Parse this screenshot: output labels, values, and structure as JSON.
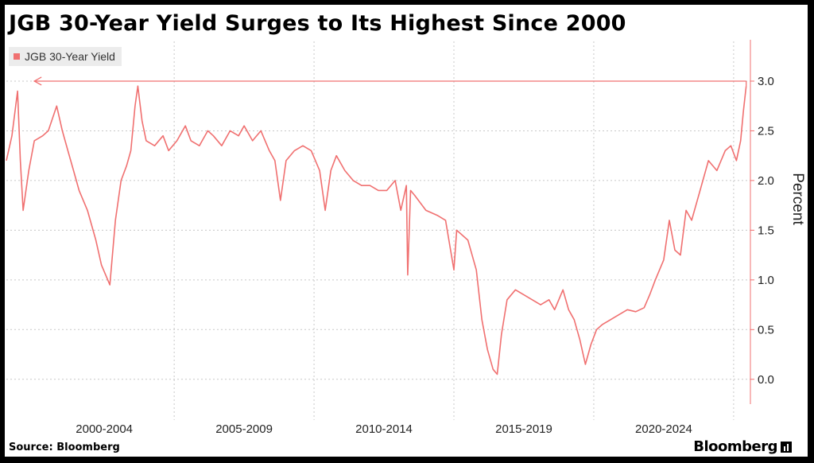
{
  "title": "JGB 30-Year Yield Surges to Its Highest Since 2000",
  "source": "Source: Bloomberg",
  "logo": "Bloomberg",
  "colors": {
    "series": "#f07070",
    "axis": "#f07070",
    "grid": "#c8c8c8"
  },
  "chart_data": {
    "type": "line",
    "title": "JGB 30-Year Yield Surges to Its Highest Since 2000",
    "legend": [
      "JGB 30-Year Yield"
    ],
    "legend_position": "top-left",
    "ylabel": "Percent",
    "y_axis_side": "right",
    "ylim": [
      -0.25,
      3.4
    ],
    "yticks": [
      "0.0",
      "0.5",
      "1.0",
      "1.5",
      "2.0",
      "2.5",
      "3.0"
    ],
    "x_period_labels": [
      "2000-2004",
      "2005-2009",
      "2010-2014",
      "2015-2019",
      "2020-2024"
    ],
    "xlim": [
      1999.0,
      2025.6
    ],
    "grid": true,
    "annotation": "horizontal arrow at 3.0 from latest value back to 2000",
    "series": [
      {
        "name": "JGB 30-Year Yield",
        "x": [
          1999.0,
          1999.2,
          1999.4,
          1999.5,
          1999.6,
          1999.8,
          2000.0,
          2000.3,
          2000.5,
          2000.8,
          2001.0,
          2001.2,
          2001.4,
          2001.6,
          2001.9,
          2002.2,
          2002.4,
          2002.7,
          2002.9,
          2003.1,
          2003.3,
          2003.45,
          2003.6,
          2003.7,
          2003.85,
          2004.0,
          2004.3,
          2004.6,
          2004.8,
          2005.1,
          2005.4,
          2005.6,
          2005.9,
          2006.2,
          2006.4,
          2006.7,
          2007.0,
          2007.3,
          2007.5,
          2007.8,
          2008.1,
          2008.4,
          2008.6,
          2008.8,
          2009.0,
          2009.3,
          2009.6,
          2009.9,
          2010.2,
          2010.4,
          2010.6,
          2010.8,
          2011.1,
          2011.4,
          2011.7,
          2012.0,
          2012.3,
          2012.6,
          2012.9,
          2013.1,
          2013.3,
          2013.35,
          2013.45,
          2013.6,
          2014.0,
          2014.4,
          2014.7,
          2015.0,
          2015.1,
          2015.3,
          2015.5,
          2015.8,
          2016.0,
          2016.2,
          2016.4,
          2016.55,
          2016.7,
          2016.9,
          2017.2,
          2017.5,
          2017.8,
          2018.1,
          2018.4,
          2018.6,
          2018.9,
          2019.1,
          2019.3,
          2019.5,
          2019.7,
          2019.9,
          2020.1,
          2020.3,
          2020.6,
          2020.9,
          2021.2,
          2021.5,
          2021.8,
          2022.0,
          2022.2,
          2022.5,
          2022.7,
          2022.9,
          2023.1,
          2023.3,
          2023.5,
          2023.8,
          2024.1,
          2024.4,
          2024.7,
          2024.9,
          2025.1,
          2025.25,
          2025.35,
          2025.45
        ],
        "values": [
          2.2,
          2.45,
          2.9,
          2.2,
          1.7,
          2.1,
          2.4,
          2.45,
          2.5,
          2.75,
          2.5,
          2.3,
          2.1,
          1.9,
          1.7,
          1.4,
          1.15,
          0.95,
          1.6,
          2.0,
          2.15,
          2.3,
          2.75,
          2.95,
          2.6,
          2.4,
          2.35,
          2.45,
          2.3,
          2.4,
          2.55,
          2.4,
          2.35,
          2.5,
          2.45,
          2.35,
          2.5,
          2.45,
          2.55,
          2.4,
          2.5,
          2.3,
          2.2,
          1.8,
          2.2,
          2.3,
          2.35,
          2.3,
          2.1,
          1.7,
          2.1,
          2.25,
          2.1,
          2.0,
          1.95,
          1.95,
          1.9,
          1.9,
          2.0,
          1.7,
          1.95,
          1.05,
          1.9,
          1.85,
          1.7,
          1.65,
          1.6,
          1.1,
          1.5,
          1.45,
          1.4,
          1.1,
          0.6,
          0.3,
          0.1,
          0.05,
          0.45,
          0.8,
          0.9,
          0.85,
          0.8,
          0.75,
          0.8,
          0.7,
          0.9,
          0.7,
          0.6,
          0.4,
          0.15,
          0.35,
          0.5,
          0.55,
          0.6,
          0.65,
          0.7,
          0.68,
          0.72,
          0.85,
          1.0,
          1.2,
          1.6,
          1.3,
          1.25,
          1.7,
          1.6,
          1.9,
          2.2,
          2.1,
          2.3,
          2.35,
          2.2,
          2.4,
          2.7,
          2.95
        ]
      }
    ]
  }
}
